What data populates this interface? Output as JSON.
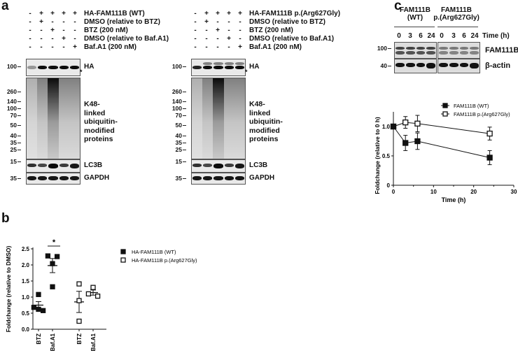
{
  "panel_a": {
    "label": "a",
    "left": {
      "rows": [
        {
          "label": "HA-FAM111B (WT)",
          "signs": [
            "-",
            "+",
            "+",
            "+",
            "+"
          ]
        },
        {
          "label": "DMSO (relative to BTZ)",
          "signs": [
            "-",
            "+",
            "-",
            "-",
            "-"
          ]
        },
        {
          "label": "BTZ (200 nM)",
          "signs": [
            "-",
            "-",
            "+",
            "-",
            "-"
          ]
        },
        {
          "label": "DMSO (relative to Baf.A1)",
          "signs": [
            "-",
            "-",
            "-",
            "+",
            "-"
          ]
        },
        {
          "label": "Baf.A1 (200 nM)",
          "signs": [
            "-",
            "-",
            "-",
            "-",
            "+"
          ]
        }
      ]
    },
    "right": {
      "rows": [
        {
          "label": "HA-FAM111B p.(Arg627Gly)",
          "signs": [
            "-",
            "+",
            "+",
            "+",
            "+"
          ]
        },
        {
          "label": "DMSO (relative to BTZ)",
          "signs": [
            "-",
            "+",
            "-",
            "-",
            "-"
          ]
        },
        {
          "label": "BTZ (200 nM)",
          "signs": [
            "-",
            "-",
            "+",
            "-",
            "-"
          ]
        },
        {
          "label": "DMSO (relative to Baf.A1)",
          "signs": [
            "-",
            "-",
            "-",
            "+",
            "-"
          ]
        },
        {
          "label": "Baf.A1 (200 nM)",
          "signs": [
            "-",
            "-",
            "-",
            "-",
            "+"
          ]
        }
      ]
    },
    "blot_labels": {
      "ha": "HA",
      "asterisk": "*",
      "k48": [
        "K48-",
        "linked",
        "ubiquitin-",
        "modified",
        "proteins"
      ],
      "lc3b": "LC3B",
      "gapdh": "GAPDH"
    },
    "mw_markers": {
      "ha": "100",
      "k48": [
        "260",
        "140",
        "100",
        "70",
        "50",
        "40",
        "35",
        "25"
      ],
      "lc3b": "15",
      "gapdh": "35"
    }
  },
  "panel_b": {
    "label": "b",
    "significance": "*"
  },
  "panel_c": {
    "label": "c",
    "groups": [
      "FAM111B\n(WT)",
      "FAM111B\np.(Arg627Gly)"
    ],
    "group_lines": [
      [
        "FAM111B",
        "(WT)"
      ],
      [
        "FAM111B",
        "p.(Arg627Gly)"
      ]
    ],
    "timepoints": [
      "0",
      "3",
      "6",
      "24",
      "0",
      "3",
      "6",
      "24"
    ],
    "time_label": "Time (h)",
    "blot_labels": {
      "fam111b": "FAM111B",
      "actin": "β-actin"
    },
    "mw_markers": {
      "fam111b": "100",
      "actin": "40"
    }
  },
  "chart_data": [
    {
      "type": "scatter",
      "panel": "b",
      "ylabel": "Foldchange (relative to DMSO)",
      "ylim": [
        0,
        2.5
      ],
      "yticks": [
        "0.0",
        "0.5",
        "1.0",
        "1.5",
        "2.0",
        "2.5"
      ],
      "categories": [
        "BTZ",
        "Baf.A1",
        "BTZ",
        "Baf.A1"
      ],
      "legend_position": "right",
      "series": [
        {
          "name": "HA-FAM111B (WT)",
          "marker": "filled-square",
          "groups": [
            {
              "category": "BTZ",
              "points": [
                1.08,
                0.68,
                0.62,
                0.58
              ],
              "mean": 0.75,
              "sem": 0.11
            },
            {
              "category": "Baf.A1",
              "points": [
                2.28,
                2.26,
                2.04,
                1.32
              ],
              "mean": 1.98,
              "sem": 0.22
            }
          ]
        },
        {
          "name": "HA-FAM111B p.(Arg627Gly)",
          "marker": "open-square",
          "groups": [
            {
              "category": "BTZ",
              "points": [
                1.41,
                0.89,
                0.25
              ],
              "mean": 0.85,
              "sem": 0.33
            },
            {
              "category": "Baf.A1",
              "points": [
                1.3,
                1.1,
                1.03
              ],
              "mean": 1.14,
              "sem": 0.08
            }
          ]
        }
      ]
    },
    {
      "type": "line",
      "panel": "c",
      "xlabel": "Time (h)",
      "ylabel": "Foldchange (relative to 0 h)",
      "xlim": [
        0,
        30
      ],
      "ylim": [
        0,
        1.25
      ],
      "xticks": [
        "0",
        "10",
        "20",
        "30"
      ],
      "yticks": [
        "0",
        "0.5",
        "1.0"
      ],
      "legend_position": "top-right",
      "x": [
        0,
        3,
        6,
        24
      ],
      "series": [
        {
          "name": "FAM111B (WT)",
          "marker": "filled-square",
          "values": [
            1.0,
            0.72,
            0.75,
            0.47
          ],
          "errors": [
            0,
            0.13,
            0.14,
            0.12
          ]
        },
        {
          "name": "FAM111B p.(Arg627Gly)",
          "marker": "open-square",
          "values": [
            1.0,
            1.07,
            1.05,
            0.88
          ],
          "errors": [
            0,
            0.1,
            0.14,
            0.11
          ]
        }
      ]
    }
  ]
}
